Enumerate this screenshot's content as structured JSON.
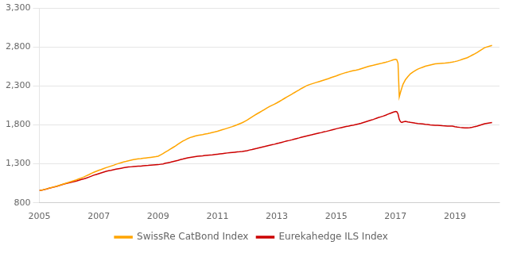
{
  "chart_data": {
    "type": "line",
    "x": [
      2005.0,
      2005.083,
      2005.167,
      2005.25,
      2005.333,
      2005.417,
      2005.5,
      2005.583,
      2005.667,
      2005.75,
      2005.833,
      2005.917,
      2006.0,
      2006.083,
      2006.167,
      2006.25,
      2006.333,
      2006.417,
      2006.5,
      2006.583,
      2006.667,
      2006.75,
      2006.833,
      2006.917,
      2007.0,
      2007.083,
      2007.167,
      2007.25,
      2007.333,
      2007.417,
      2007.5,
      2007.583,
      2007.667,
      2007.75,
      2007.833,
      2007.917,
      2008.0,
      2008.083,
      2008.167,
      2008.25,
      2008.333,
      2008.417,
      2008.5,
      2008.583,
      2008.667,
      2008.75,
      2008.833,
      2008.917,
      2009.0,
      2009.083,
      2009.167,
      2009.25,
      2009.333,
      2009.417,
      2009.5,
      2009.583,
      2009.667,
      2009.75,
      2009.833,
      2009.917,
      2010.0,
      2010.083,
      2010.167,
      2010.25,
      2010.333,
      2010.417,
      2010.5,
      2010.583,
      2010.667,
      2010.75,
      2010.833,
      2010.917,
      2011.0,
      2011.083,
      2011.167,
      2011.25,
      2011.333,
      2011.417,
      2011.5,
      2011.583,
      2011.667,
      2011.75,
      2011.833,
      2011.917,
      2012.0,
      2012.083,
      2012.167,
      2012.25,
      2012.333,
      2012.417,
      2012.5,
      2012.583,
      2012.667,
      2012.75,
      2012.833,
      2012.917,
      2013.0,
      2013.083,
      2013.167,
      2013.25,
      2013.333,
      2013.417,
      2013.5,
      2013.583,
      2013.667,
      2013.75,
      2013.833,
      2013.917,
      2014.0,
      2014.083,
      2014.167,
      2014.25,
      2014.333,
      2014.417,
      2014.5,
      2014.583,
      2014.667,
      2014.75,
      2014.833,
      2014.917,
      2015.0,
      2015.083,
      2015.167,
      2015.25,
      2015.333,
      2015.417,
      2015.5,
      2015.583,
      2015.667,
      2015.75,
      2015.833,
      2015.917,
      2016.0,
      2016.083,
      2016.167,
      2016.25,
      2016.333,
      2016.417,
      2016.5,
      2016.583,
      2016.667,
      2016.75,
      2016.833,
      2016.917,
      2017.0,
      2017.042,
      2017.083,
      2017.125,
      2017.167,
      2017.208,
      2017.25,
      2017.333,
      2017.417,
      2017.5,
      2017.583,
      2017.667,
      2017.75,
      2017.833,
      2017.917,
      2018.0,
      2018.083,
      2018.167,
      2018.25,
      2018.333,
      2018.417,
      2018.5,
      2018.583,
      2018.667,
      2018.75,
      2018.833,
      2018.917,
      2019.0,
      2019.083,
      2019.167,
      2019.25,
      2019.333,
      2019.417,
      2019.5,
      2019.583,
      2019.667,
      2019.75,
      2019.833,
      2019.917,
      2020.0,
      2020.25
    ],
    "series": [
      {
        "name": "SwissRe CatBond Index",
        "color": "#FFA500",
        "values": [
          960,
          963,
          972,
          980,
          990,
          998,
          1005,
          1015,
          1025,
          1035,
          1045,
          1055,
          1065,
          1075,
          1085,
          1095,
          1108,
          1120,
          1132,
          1148,
          1162,
          1178,
          1192,
          1205,
          1218,
          1228,
          1240,
          1252,
          1262,
          1272,
          1282,
          1295,
          1305,
          1315,
          1325,
          1332,
          1340,
          1348,
          1355,
          1360,
          1365,
          1368,
          1372,
          1376,
          1380,
          1384,
          1388,
          1392,
          1398,
          1415,
          1432,
          1452,
          1470,
          1490,
          1510,
          1530,
          1552,
          1572,
          1592,
          1608,
          1625,
          1638,
          1648,
          1658,
          1665,
          1670,
          1675,
          1682,
          1688,
          1695,
          1703,
          1710,
          1718,
          1728,
          1738,
          1748,
          1758,
          1768,
          1778,
          1790,
          1802,
          1815,
          1828,
          1845,
          1862,
          1882,
          1902,
          1922,
          1942,
          1960,
          1978,
          1998,
          2018,
          2035,
          2050,
          2065,
          2082,
          2100,
          2118,
          2138,
          2158,
          2175,
          2192,
          2212,
          2230,
          2248,
          2268,
          2285,
          2302,
          2315,
          2325,
          2335,
          2345,
          2355,
          2365,
          2375,
          2385,
          2395,
          2408,
          2418,
          2428,
          2440,
          2452,
          2462,
          2472,
          2480,
          2488,
          2496,
          2502,
          2510,
          2520,
          2530,
          2540,
          2550,
          2558,
          2565,
          2573,
          2580,
          2587,
          2595,
          2603,
          2612,
          2622,
          2633,
          2642,
          2635,
          2590,
          2160,
          2220,
          2270,
          2320,
          2380,
          2420,
          2455,
          2478,
          2498,
          2515,
          2528,
          2540,
          2552,
          2560,
          2568,
          2575,
          2582,
          2585,
          2588,
          2590,
          2592,
          2596,
          2600,
          2605,
          2612,
          2620,
          2630,
          2642,
          2652,
          2662,
          2678,
          2695,
          2712,
          2730,
          2750,
          2770,
          2790,
          2820
        ]
      },
      {
        "name": "Eurekahedge ILS Index",
        "color": "#CC0000",
        "values": [
          960,
          962,
          970,
          978,
          988,
          995,
          1005,
          1012,
          1022,
          1032,
          1042,
          1050,
          1058,
          1065,
          1072,
          1080,
          1090,
          1100,
          1108,
          1118,
          1130,
          1142,
          1155,
          1165,
          1175,
          1185,
          1195,
          1205,
          1212,
          1218,
          1225,
          1232,
          1238,
          1244,
          1250,
          1255,
          1260,
          1262,
          1265,
          1268,
          1270,
          1272,
          1275,
          1278,
          1280,
          1283,
          1286,
          1288,
          1290,
          1295,
          1300,
          1308,
          1315,
          1322,
          1330,
          1338,
          1345,
          1355,
          1362,
          1370,
          1378,
          1383,
          1388,
          1393,
          1397,
          1400,
          1403,
          1407,
          1410,
          1413,
          1416,
          1420,
          1424,
          1428,
          1432,
          1436,
          1440,
          1444,
          1447,
          1450,
          1453,
          1456,
          1460,
          1465,
          1470,
          1478,
          1485,
          1493,
          1500,
          1508,
          1515,
          1522,
          1530,
          1538,
          1545,
          1552,
          1560,
          1568,
          1577,
          1585,
          1593,
          1600,
          1608,
          1617,
          1625,
          1633,
          1642,
          1650,
          1658,
          1665,
          1672,
          1680,
          1688,
          1695,
          1702,
          1710,
          1717,
          1725,
          1733,
          1742,
          1750,
          1758,
          1765,
          1772,
          1779,
          1785,
          1792,
          1798,
          1805,
          1812,
          1820,
          1830,
          1840,
          1850,
          1860,
          1870,
          1882,
          1893,
          1903,
          1913,
          1925,
          1938,
          1950,
          1962,
          1972,
          1968,
          1940,
          1870,
          1840,
          1832,
          1838,
          1845,
          1838,
          1832,
          1828,
          1822,
          1818,
          1815,
          1812,
          1808,
          1805,
          1800,
          1798,
          1795,
          1795,
          1793,
          1790,
          1788,
          1785,
          1785,
          1785,
          1778,
          1772,
          1768,
          1765,
          1762,
          1762,
          1765,
          1770,
          1778,
          1785,
          1795,
          1805,
          1815,
          1830
        ]
      }
    ],
    "xlim": [
      2005.0,
      2020.5
    ],
    "xticks": [
      2005,
      2007,
      2009,
      2011,
      2013,
      2015,
      2017,
      2019
    ],
    "ylim": [
      800,
      3300
    ],
    "yticks": [
      800,
      {
        "value": 1300,
        "label": "1,300"
      },
      {
        "value": 1800,
        "label": "1,800"
      },
      {
        "value": 2300,
        "label": "2,300"
      },
      {
        "value": 2800,
        "label": "2,800"
      },
      {
        "value": 3300,
        "label": "3,300"
      }
    ],
    "grid": "y",
    "legend": "bottom"
  }
}
